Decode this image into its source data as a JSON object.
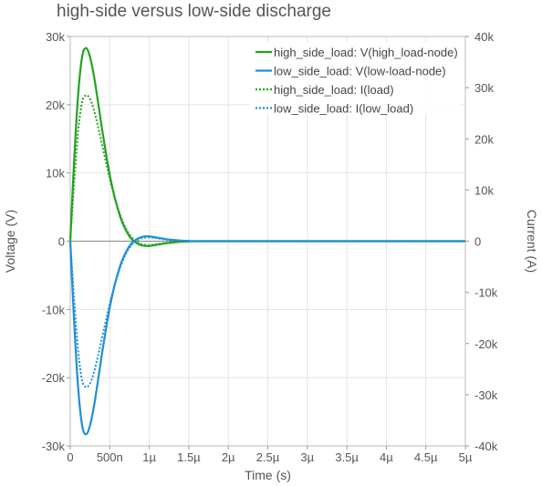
{
  "chart_data": {
    "type": "line",
    "title": "high-side versus low-side discharge",
    "xlabel": "Time (s)",
    "ylabel": "Voltage (V)",
    "y2label": "Current (A)",
    "xlim": [
      0,
      5e-06
    ],
    "ylim": [
      -30000,
      30000
    ],
    "y2lim": [
      -40000,
      40000
    ],
    "x_ticks": [
      0,
      5e-07,
      1e-06,
      1.5e-06,
      2e-06,
      2.5e-06,
      3e-06,
      3.5e-06,
      4e-06,
      4.5e-06,
      5e-06
    ],
    "x_tick_labels": [
      "0",
      "500n",
      "1µ",
      "1.5µ",
      "2µ",
      "2.5µ",
      "3µ",
      "3.5µ",
      "4µ",
      "4.5µ",
      "5µ"
    ],
    "y_ticks": [
      -30000,
      -20000,
      -10000,
      0,
      10000,
      20000,
      30000
    ],
    "y_tick_labels": [
      "-30k",
      "-20k",
      "-10k",
      "0",
      "10k",
      "20k",
      "30k"
    ],
    "y2_ticks": [
      -40000,
      -30000,
      -20000,
      -10000,
      0,
      10000,
      20000,
      30000,
      40000
    ],
    "y2_tick_labels": [
      "-40k",
      "-30k",
      "-20k",
      "-10k",
      "0",
      "10k",
      "20k",
      "30k",
      "40k"
    ],
    "grid": true,
    "legend_position": "top-right",
    "x": [
      0,
      5e-08,
      1e-07,
      1.5e-07,
      2e-07,
      2.5e-07,
      3e-07,
      3.5e-07,
      4e-07,
      4.5e-07,
      5e-07,
      5.5e-07,
      6e-07,
      6.5e-07,
      7e-07,
      7.5e-07,
      8e-07,
      8.5e-07,
      9e-07,
      9.5e-07,
      1e-06,
      1.05e-06,
      1.1e-06,
      1.15e-06,
      1.2e-06,
      1.3e-06,
      1.4e-06,
      1.5e-06,
      1.6e-06,
      1.8e-06,
      2e-06,
      2.5e-06,
      3e-06,
      3.5e-06,
      4e-06,
      4.5e-06,
      5e-06
    ],
    "series": [
      {
        "name": "high_side_load: V(high_load-node)",
        "axis": "left",
        "color": "#22a322",
        "style": "solid",
        "values": [
          0,
          12000,
          21500,
          27000,
          28300,
          27000,
          24200,
          20500,
          16600,
          13000,
          9700,
          7000,
          4800,
          3000,
          1700,
          700,
          50,
          -350,
          -600,
          -700,
          -700,
          -620,
          -520,
          -420,
          -330,
          -190,
          -90,
          -30,
          0,
          0,
          0,
          0,
          0,
          0,
          0,
          0,
          0
        ]
      },
      {
        "name": "low_side_load: V(low-load-node)",
        "axis": "left",
        "color": "#1e8fd6",
        "style": "solid",
        "values": [
          0,
          -12000,
          -21500,
          -27000,
          -28300,
          -27000,
          -24200,
          -20500,
          -16600,
          -13000,
          -9700,
          -7000,
          -4800,
          -3000,
          -1700,
          -700,
          -50,
          350,
          600,
          700,
          700,
          620,
          520,
          420,
          330,
          190,
          90,
          30,
          0,
          0,
          0,
          0,
          0,
          0,
          0,
          0,
          0
        ]
      },
      {
        "name": "high_side_load: I(load)",
        "axis": "right",
        "color": "#22a322",
        "style": "dotted",
        "values": [
          0,
          11500,
          21500,
          27200,
          28500,
          27800,
          25600,
          22500,
          19000,
          15600,
          12200,
          9200,
          6600,
          4400,
          2600,
          1300,
          400,
          -200,
          -550,
          -700,
          -750,
          -680,
          -580,
          -460,
          -360,
          -200,
          -100,
          -40,
          0,
          0,
          0,
          0,
          0,
          0,
          0,
          0,
          0
        ]
      },
      {
        "name": "low_side_load: I(low_load)",
        "axis": "right",
        "color": "#1e8fd6",
        "style": "dotted",
        "values": [
          0,
          -11500,
          -21500,
          -27200,
          -28500,
          -27800,
          -25600,
          -22500,
          -19000,
          -15600,
          -12200,
          -9200,
          -6600,
          -4400,
          -2600,
          -1300,
          -400,
          200,
          550,
          700,
          750,
          680,
          580,
          460,
          360,
          200,
          100,
          40,
          0,
          0,
          0,
          0,
          0,
          0,
          0,
          0,
          0
        ]
      }
    ]
  }
}
